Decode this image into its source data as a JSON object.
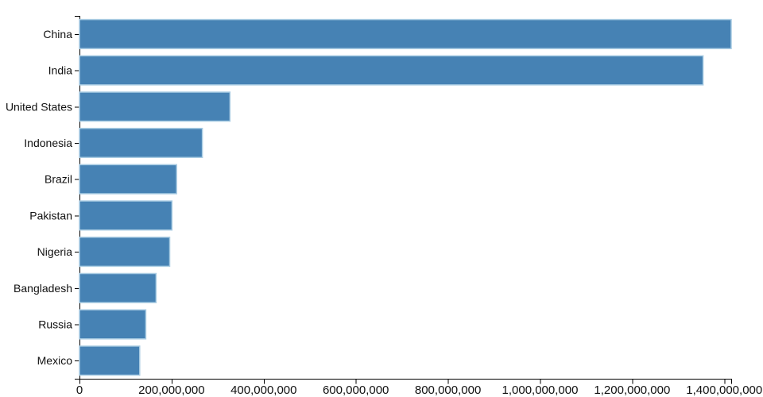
{
  "chart_data": {
    "type": "bar",
    "orientation": "horizontal",
    "title": "",
    "xlabel": "",
    "ylabel": "",
    "categories": [
      "China",
      "India",
      "United States",
      "Indonesia",
      "Brazil",
      "Pakistan",
      "Nigeria",
      "Bangladesh",
      "Russia",
      "Mexico"
    ],
    "values": [
      1415045928,
      1354051854,
      326766748,
      266794980,
      210867954,
      200813818,
      195875237,
      166368149,
      143964709,
      130759074
    ],
    "xlim": [
      0,
      1415045928
    ],
    "x_tick_values": [
      0,
      200000000,
      400000000,
      600000000,
      800000000,
      1000000000,
      1200000000,
      1400000000
    ],
    "x_tick_labels": [
      "0",
      "200,000,000",
      "400,000,000",
      "600,000,000",
      "800,000,000",
      "1,000,000,000",
      "1,200,000,000",
      "1,400,000,000"
    ],
    "grid": false,
    "legend": false,
    "colors": {
      "bar_fill": "#4682b4",
      "bar_stroke": "#a9cce3",
      "axis": "#000000",
      "tick_text": "#111111"
    }
  }
}
